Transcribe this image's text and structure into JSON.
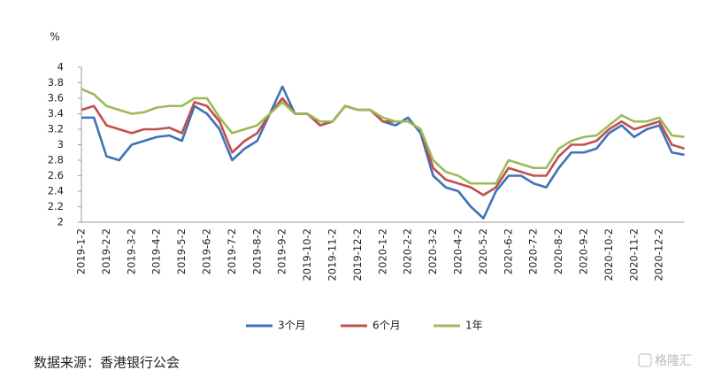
{
  "chart_data": {
    "type": "line",
    "y_unit": "%",
    "categories": [
      "2019-1-2",
      null,
      "2019-2-2",
      null,
      "2019-3-2",
      null,
      "2019-4-2",
      null,
      "2019-5-2",
      null,
      "2019-6-2",
      null,
      "2019-7-2",
      null,
      "2019-8-2",
      null,
      "2019-9-2",
      null,
      "2019-10-2",
      null,
      "2019-11-2",
      null,
      "2019-12-2",
      null,
      "2020-1-2",
      null,
      "2020-2-2",
      null,
      "2020-3-2",
      null,
      "2020-4-2",
      null,
      "2020-5-2",
      null,
      "2020-6-2",
      null,
      "2020-7-2",
      null,
      "2020-8-2",
      null,
      "2020-9-2",
      null,
      "2020-10-2",
      null,
      "2020-11-2",
      null,
      "2020-12-2",
      null,
      null
    ],
    "series": [
      {
        "name": "3个月",
        "color": "#3f72b8",
        "values": [
          3.35,
          3.35,
          2.85,
          2.8,
          3.0,
          3.05,
          3.1,
          3.12,
          3.05,
          3.5,
          3.4,
          3.2,
          2.8,
          2.95,
          3.05,
          3.4,
          3.75,
          3.4,
          3.4,
          3.25,
          3.3,
          3.5,
          3.45,
          3.45,
          3.3,
          3.25,
          3.35,
          3.15,
          2.6,
          2.45,
          2.4,
          2.2,
          2.05,
          2.4,
          2.6,
          2.6,
          2.5,
          2.45,
          2.7,
          2.9,
          2.9,
          2.95,
          3.15,
          3.25,
          3.1,
          3.2,
          3.25,
          2.9,
          2.87
        ]
      },
      {
        "name": "6个月",
        "color": "#c0504d",
        "values": [
          3.45,
          3.5,
          3.25,
          3.2,
          3.15,
          3.2,
          3.2,
          3.22,
          3.15,
          3.55,
          3.5,
          3.3,
          2.9,
          3.05,
          3.15,
          3.4,
          3.6,
          3.4,
          3.4,
          3.25,
          3.3,
          3.5,
          3.45,
          3.45,
          3.3,
          3.3,
          3.3,
          3.2,
          2.7,
          2.55,
          2.5,
          2.45,
          2.35,
          2.45,
          2.7,
          2.65,
          2.6,
          2.6,
          2.85,
          3.0,
          3.0,
          3.05,
          3.2,
          3.3,
          3.2,
          3.25,
          3.3,
          3.0,
          2.95
        ]
      },
      {
        "name": "1年",
        "color": "#9bbb59",
        "values": [
          3.72,
          3.65,
          3.5,
          3.45,
          3.4,
          3.42,
          3.48,
          3.5,
          3.5,
          3.6,
          3.6,
          3.35,
          3.15,
          3.2,
          3.25,
          3.4,
          3.55,
          3.4,
          3.4,
          3.3,
          3.3,
          3.5,
          3.45,
          3.45,
          3.35,
          3.3,
          3.3,
          3.2,
          2.8,
          2.65,
          2.6,
          2.5,
          2.5,
          2.5,
          2.8,
          2.75,
          2.7,
          2.7,
          2.95,
          3.05,
          3.1,
          3.12,
          3.25,
          3.38,
          3.3,
          3.3,
          3.35,
          3.12,
          3.1
        ]
      }
    ],
    "ylim": [
      2,
      4
    ],
    "yticks": [
      2,
      2.2,
      2.4,
      2.6,
      2.8,
      3,
      3.2,
      3.4,
      3.6,
      3.8,
      4
    ],
    "source": "数据来源：香港银行公会",
    "watermark": "格隆汇"
  }
}
